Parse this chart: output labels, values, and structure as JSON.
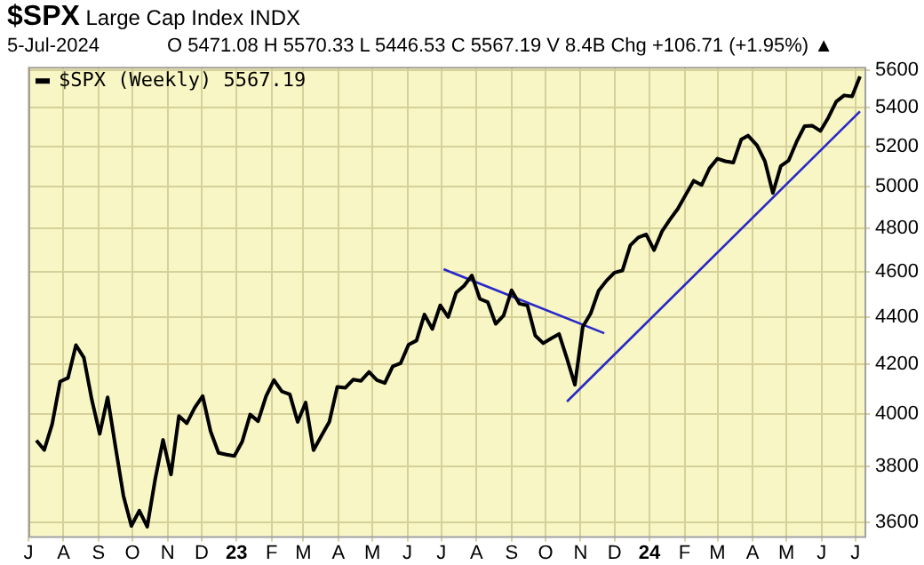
{
  "chart_data": {
    "type": "line",
    "title": "$SPX Large Cap Index INDX",
    "subtitle": "5-Jul-2024",
    "annotations": [
      "O 5471.08 H 5570.33 L 5446.53 C 5567.19 V 8.4B Chg +106.71 (+1.95%) ▲"
    ],
    "x": [
      "2022-07-08",
      "2022-07-15",
      "2022-07-22",
      "2022-07-29",
      "2022-08-05",
      "2022-08-12",
      "2022-08-19",
      "2022-08-26",
      "2022-09-02",
      "2022-09-09",
      "2022-09-16",
      "2022-09-23",
      "2022-09-30",
      "2022-10-07",
      "2022-10-14",
      "2022-10-21",
      "2022-10-28",
      "2022-11-04",
      "2022-11-11",
      "2022-11-18",
      "2022-11-25",
      "2022-12-02",
      "2022-12-09",
      "2022-12-16",
      "2022-12-23",
      "2022-12-30",
      "2023-01-06",
      "2023-01-13",
      "2023-01-20",
      "2023-01-27",
      "2023-02-03",
      "2023-02-10",
      "2023-02-17",
      "2023-02-24",
      "2023-03-03",
      "2023-03-10",
      "2023-03-17",
      "2023-03-24",
      "2023-03-31",
      "2023-04-07",
      "2023-04-14",
      "2023-04-21",
      "2023-04-28",
      "2023-05-05",
      "2023-05-12",
      "2023-05-19",
      "2023-05-26",
      "2023-06-02",
      "2023-06-09",
      "2023-06-16",
      "2023-06-23",
      "2023-06-30",
      "2023-07-07",
      "2023-07-14",
      "2023-07-21",
      "2023-07-28",
      "2023-08-04",
      "2023-08-11",
      "2023-08-18",
      "2023-08-25",
      "2023-09-01",
      "2023-09-08",
      "2023-09-15",
      "2023-09-22",
      "2023-09-29",
      "2023-10-06",
      "2023-10-13",
      "2023-10-20",
      "2023-10-27",
      "2023-11-03",
      "2023-11-10",
      "2023-11-17",
      "2023-11-24",
      "2023-12-01",
      "2023-12-08",
      "2023-12-15",
      "2023-12-22",
      "2023-12-29",
      "2024-01-05",
      "2024-01-12",
      "2024-01-19",
      "2024-01-26",
      "2024-02-02",
      "2024-02-09",
      "2024-02-16",
      "2024-02-23",
      "2024-03-01",
      "2024-03-08",
      "2024-03-15",
      "2024-03-22",
      "2024-03-28",
      "2024-04-05",
      "2024-04-12",
      "2024-04-19",
      "2024-04-26",
      "2024-05-03",
      "2024-05-10",
      "2024-05-17",
      "2024-05-24",
      "2024-05-31",
      "2024-06-07",
      "2024-06-14",
      "2024-06-21",
      "2024-06-28",
      "2024-07-05"
    ],
    "series": [
      {
        "name": "$SPX (Weekly) 5567.19",
        "color": "#000000",
        "values": [
          3899,
          3863,
          3962,
          4130,
          4145,
          4280,
          4228,
          4058,
          3924,
          4067,
          3873,
          3693,
          3586,
          3640,
          3583,
          3753,
          3901,
          3771,
          3993,
          3965,
          4026,
          4072,
          3934,
          3852,
          3845,
          3840,
          3895,
          3999,
          3973,
          4071,
          4136,
          4090,
          4079,
          3970,
          4046,
          3862,
          3917,
          3971,
          4109,
          4105,
          4138,
          4133,
          4169,
          4136,
          4124,
          4192,
          4205,
          4282,
          4299,
          4410,
          4348,
          4450,
          4399,
          4505,
          4536,
          4582,
          4478,
          4464,
          4370,
          4406,
          4516,
          4457,
          4450,
          4320,
          4288,
          4308,
          4327,
          4224,
          4117,
          4358,
          4415,
          4514,
          4559,
          4595,
          4604,
          4719,
          4755,
          4770,
          4697,
          4784,
          4840,
          4891,
          4959,
          5027,
          5006,
          5089,
          5137,
          5124,
          5117,
          5234,
          5254,
          5204,
          5123,
          4967,
          5100,
          5128,
          5223,
          5303,
          5305,
          5278,
          5347,
          5432,
          5465,
          5460,
          5567
        ]
      },
      {
        "type": "line",
        "color": "#2828c8",
        "x": [
          "2023-07-03",
          "2023-11-22"
        ],
        "values": [
          4610,
          4330
        ]
      },
      {
        "type": "line",
        "color": "#2828c8",
        "x": [
          "2023-10-20",
          "2024-07-05"
        ],
        "values": [
          4050,
          5380
        ]
      }
    ],
    "xlim": [
      "2022-07-01",
      "2024-07-09"
    ],
    "xticks": [
      {
        "value": "2022-07-01",
        "label": "J"
      },
      {
        "value": "2022-08-01",
        "label": "A"
      },
      {
        "value": "2022-09-01",
        "label": "S"
      },
      {
        "value": "2022-10-01",
        "label": "O"
      },
      {
        "value": "2022-11-01",
        "label": "N"
      },
      {
        "value": "2022-12-01",
        "label": "D"
      },
      {
        "value": "2023-01-01",
        "label": "23"
      },
      {
        "value": "2023-02-01",
        "label": "F"
      },
      {
        "value": "2023-03-01",
        "label": "M"
      },
      {
        "value": "2023-04-01",
        "label": "A"
      },
      {
        "value": "2023-05-01",
        "label": "M"
      },
      {
        "value": "2023-06-01",
        "label": "J"
      },
      {
        "value": "2023-07-01",
        "label": "J"
      },
      {
        "value": "2023-08-01",
        "label": "A"
      },
      {
        "value": "2023-09-01",
        "label": "S"
      },
      {
        "value": "2023-10-01",
        "label": "O"
      },
      {
        "value": "2023-11-01",
        "label": "N"
      },
      {
        "value": "2023-12-01",
        "label": "D"
      },
      {
        "value": "2024-01-01",
        "label": "24"
      },
      {
        "value": "2024-02-01",
        "label": "F"
      },
      {
        "value": "2024-03-01",
        "label": "M"
      },
      {
        "value": "2024-04-01",
        "label": "A"
      },
      {
        "value": "2024-05-01",
        "label": "M"
      },
      {
        "value": "2024-06-01",
        "label": "J"
      },
      {
        "value": "2024-07-01",
        "label": "J"
      }
    ],
    "ylim": [
      3550,
      5620
    ],
    "yticks": [
      3600,
      3800,
      4000,
      4200,
      4400,
      4600,
      4800,
      5000,
      5200,
      5400,
      5600
    ],
    "log": "y",
    "grid": true,
    "legend": "top left",
    "marker": "none",
    "line_style": "solid"
  }
}
